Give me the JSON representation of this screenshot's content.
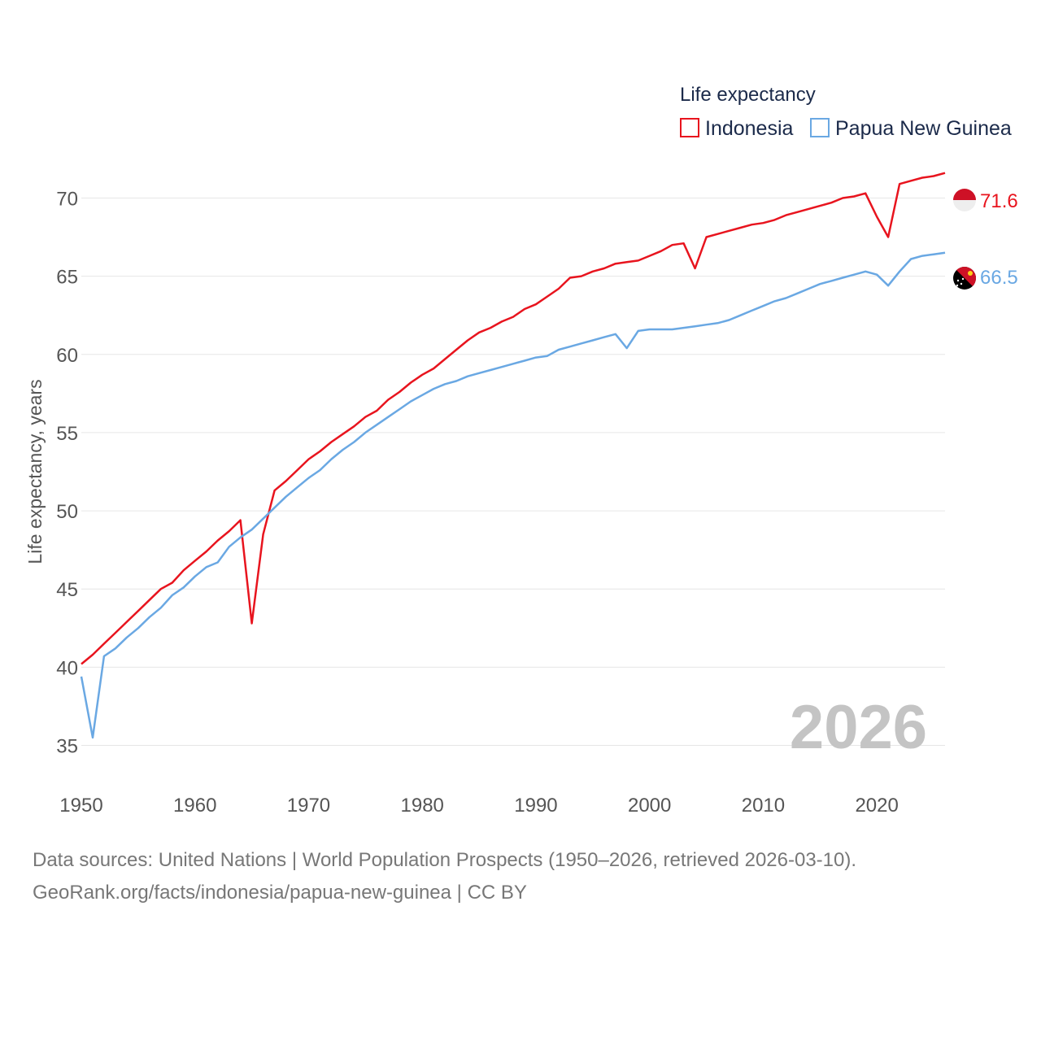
{
  "chart_data": {
    "type": "line",
    "title": "",
    "xlabel": "",
    "ylabel": "Life expectancy, years",
    "xlim": [
      1950,
      2026
    ],
    "ylim": [
      33,
      72
    ],
    "xticks": [
      1950,
      1960,
      1970,
      1980,
      1990,
      2000,
      2010,
      2020
    ],
    "yticks": [
      35,
      40,
      45,
      50,
      55,
      60,
      65,
      70
    ],
    "legend": {
      "title": "Life expectancy",
      "position": "top-right"
    },
    "current_year": "2026",
    "x": [
      1950,
      1951,
      1952,
      1953,
      1954,
      1955,
      1956,
      1957,
      1958,
      1959,
      1960,
      1961,
      1962,
      1963,
      1964,
      1965,
      1966,
      1967,
      1968,
      1969,
      1970,
      1971,
      1972,
      1973,
      1974,
      1975,
      1976,
      1977,
      1978,
      1979,
      1980,
      1981,
      1982,
      1983,
      1984,
      1985,
      1986,
      1987,
      1988,
      1989,
      1990,
      1991,
      1992,
      1993,
      1994,
      1995,
      1996,
      1997,
      1998,
      1999,
      2000,
      2001,
      2002,
      2003,
      2004,
      2005,
      2006,
      2007,
      2008,
      2009,
      2010,
      2011,
      2012,
      2013,
      2014,
      2015,
      2016,
      2017,
      2018,
      2019,
      2020,
      2021,
      2022,
      2023,
      2024,
      2025,
      2026
    ],
    "series": [
      {
        "name": "Indonesia",
        "color": "#e8141e",
        "end_label": "71.6",
        "values": [
          40.2,
          40.8,
          41.5,
          42.2,
          42.9,
          43.6,
          44.3,
          45.0,
          45.4,
          46.2,
          46.8,
          47.4,
          48.1,
          48.7,
          49.4,
          42.8,
          48.5,
          51.3,
          51.9,
          52.6,
          53.3,
          53.8,
          54.4,
          54.9,
          55.4,
          56.0,
          56.4,
          57.1,
          57.6,
          58.2,
          58.7,
          59.1,
          59.7,
          60.3,
          60.9,
          61.4,
          61.7,
          62.1,
          62.4,
          62.9,
          63.2,
          63.7,
          64.2,
          64.9,
          65.0,
          65.3,
          65.5,
          65.8,
          65.9,
          66.0,
          66.3,
          66.6,
          67.0,
          67.1,
          65.5,
          67.5,
          67.7,
          67.9,
          68.1,
          68.3,
          68.4,
          68.6,
          68.9,
          69.1,
          69.3,
          69.5,
          69.7,
          70.0,
          70.1,
          70.3,
          68.8,
          67.5,
          70.9,
          71.1,
          71.3,
          71.4,
          71.6
        ]
      },
      {
        "name": "Papua New Guinea",
        "color": "#6aa8e3",
        "end_label": "66.5",
        "values": [
          39.4,
          35.5,
          40.7,
          41.2,
          41.9,
          42.5,
          43.2,
          43.8,
          44.6,
          45.1,
          45.8,
          46.4,
          46.7,
          47.7,
          48.3,
          48.8,
          49.5,
          50.2,
          50.9,
          51.5,
          52.1,
          52.6,
          53.3,
          53.9,
          54.4,
          55.0,
          55.5,
          56.0,
          56.5,
          57.0,
          57.4,
          57.8,
          58.1,
          58.3,
          58.6,
          58.8,
          59.0,
          59.2,
          59.4,
          59.6,
          59.8,
          59.9,
          60.3,
          60.5,
          60.7,
          60.9,
          61.1,
          61.3,
          60.4,
          61.5,
          61.6,
          61.6,
          61.6,
          61.7,
          61.8,
          61.9,
          62.0,
          62.2,
          62.5,
          62.8,
          63.1,
          63.4,
          63.6,
          63.9,
          64.2,
          64.5,
          64.7,
          64.9,
          65.1,
          65.3,
          65.1,
          64.4,
          65.3,
          66.1,
          66.3,
          66.4,
          66.5
        ]
      }
    ]
  },
  "footer": {
    "line1": "Data sources: United Nations | World Population Prospects (1950–2026, retrieved 2026-03-10).",
    "line2": "GeoRank.org/facts/indonesia/papua-new-guinea | CC BY"
  }
}
